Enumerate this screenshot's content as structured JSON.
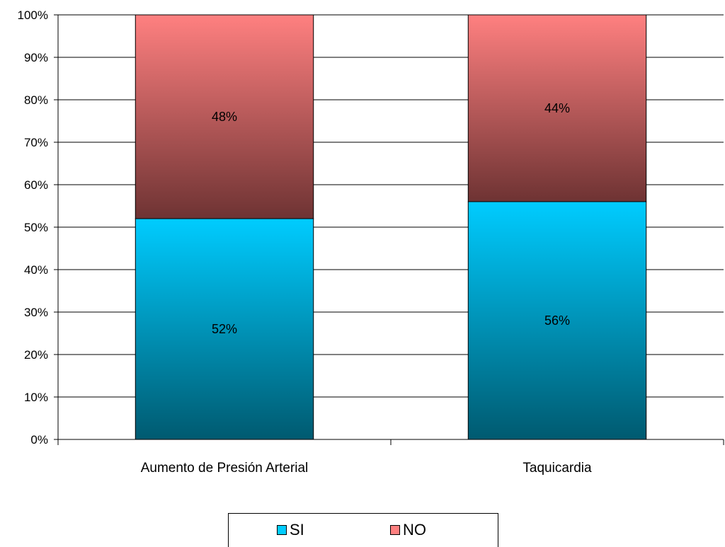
{
  "chart_data": {
    "type": "bar",
    "stacked": true,
    "percent": true,
    "categories": [
      "Aumento de Presión Arterial",
      "Taquicardia"
    ],
    "series": [
      {
        "name": "SI",
        "values": [
          52,
          56
        ],
        "labels": [
          "52%",
          "56%"
        ],
        "color_top": "#00ccff",
        "color_bottom": "#005a70"
      },
      {
        "name": "NO",
        "values": [
          48,
          44
        ],
        "labels": [
          "48%",
          "44%"
        ],
        "color_top": "#ff8080",
        "color_bottom": "#6e3333"
      }
    ],
    "yticks": [
      "0%",
      "10%",
      "20%",
      "30%",
      "40%",
      "50%",
      "60%",
      "70%",
      "80%",
      "90%",
      "100%"
    ],
    "ylim": [
      0,
      100
    ],
    "grid": true,
    "legend_position": "bottom"
  }
}
